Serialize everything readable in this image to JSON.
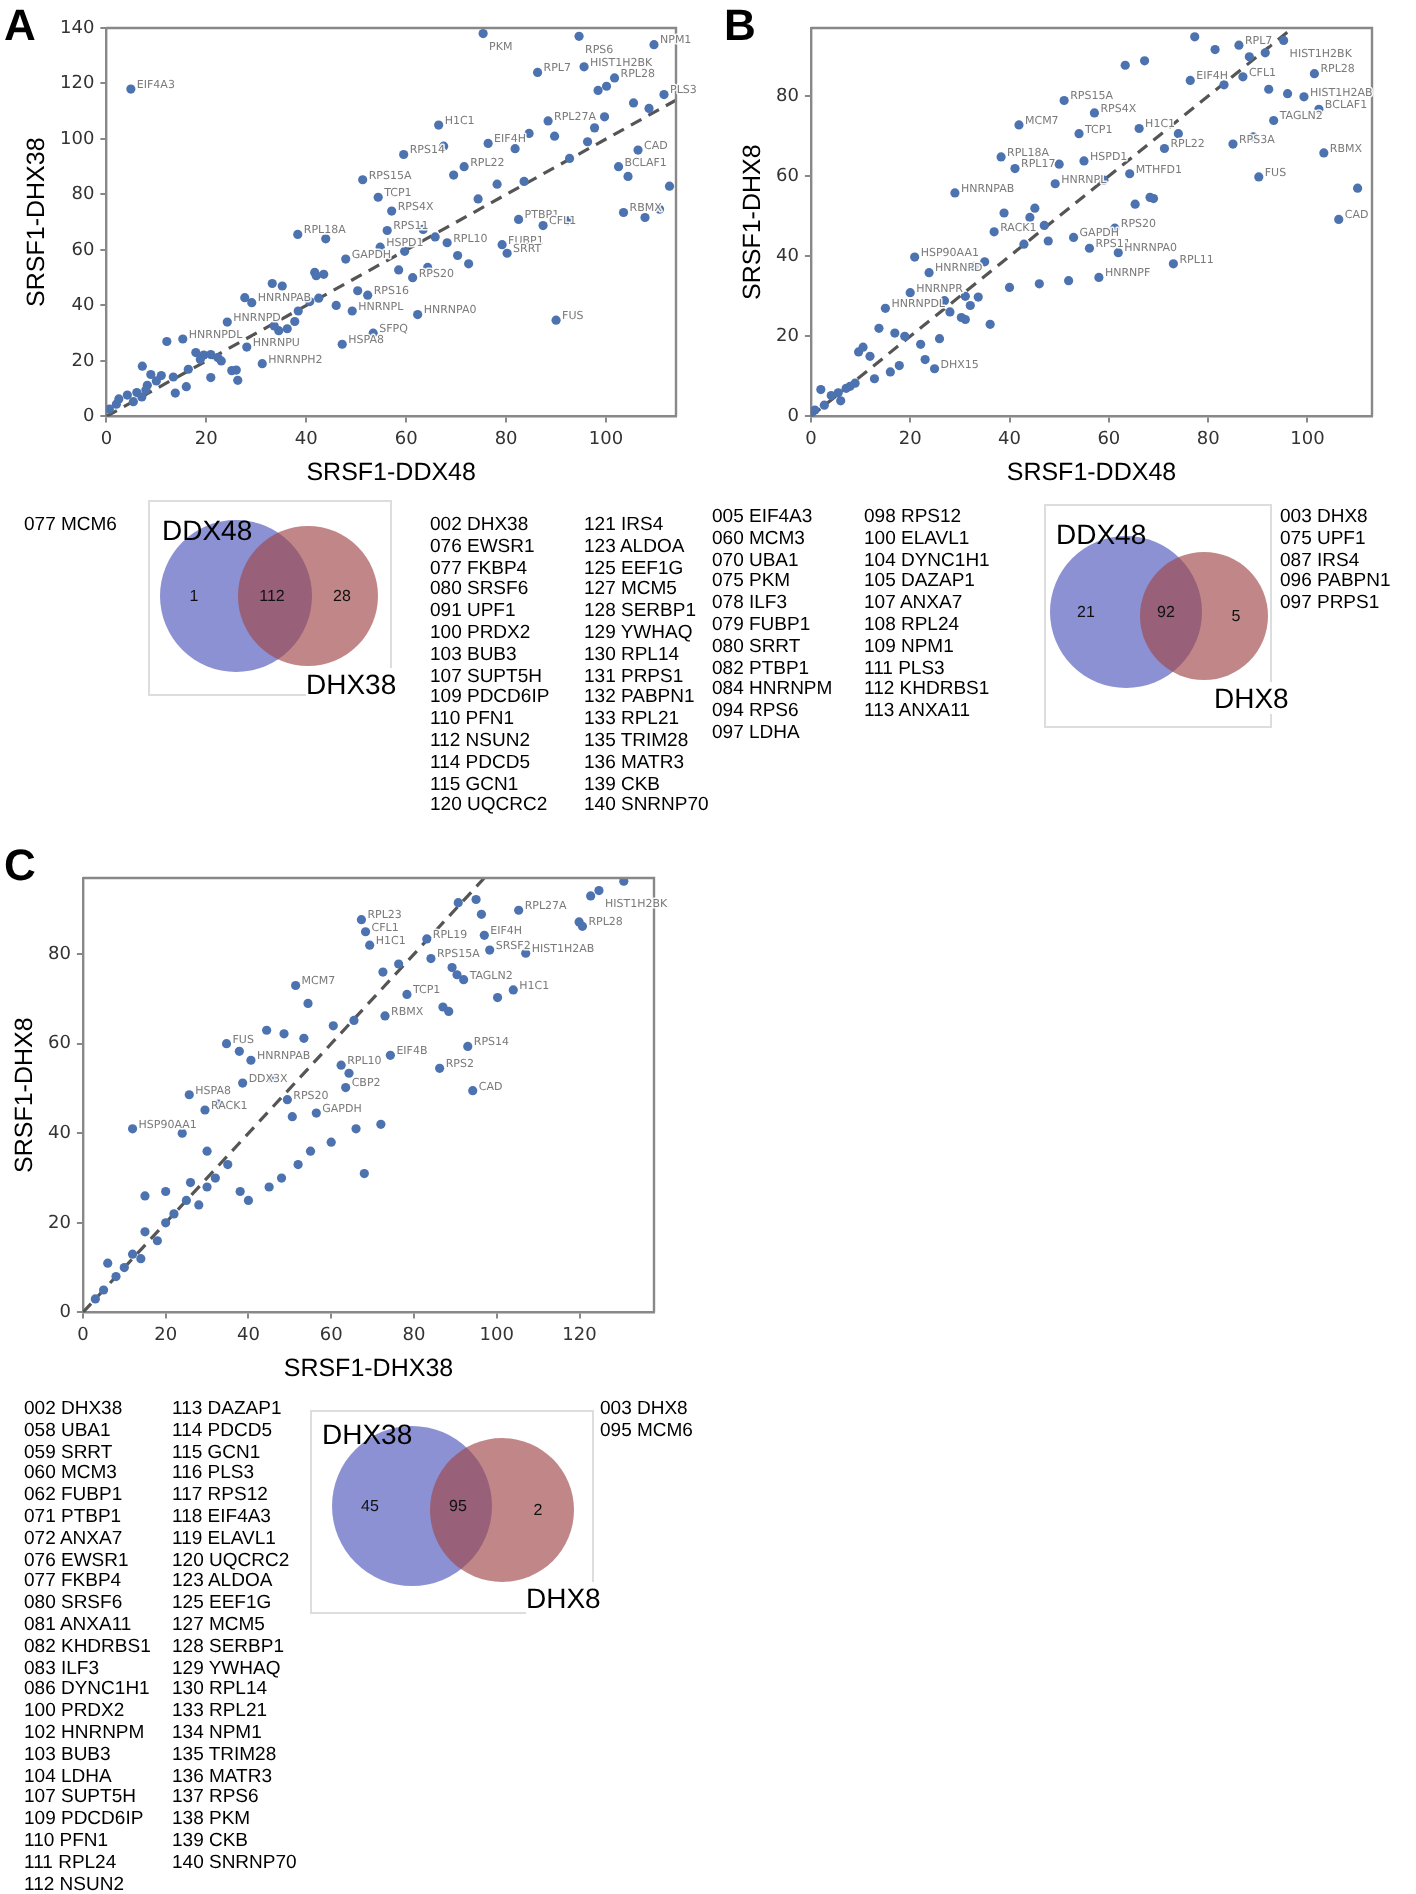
{
  "chart_data": [
    {
      "type": "scatter",
      "title": "A",
      "xlabel": "SRSF1-DDX48",
      "ylabel": "SRSF1-DHX38",
      "xlim": [
        0,
        114
      ],
      "ylim": [
        0,
        140
      ],
      "xticks": [
        0,
        20,
        40,
        60,
        80,
        100
      ],
      "yticks": [
        0,
        20,
        40,
        60,
        80,
        100,
        120,
        140
      ],
      "grid": false,
      "legend": false,
      "marker": "circle",
      "series": [
        {
          "color": "#4c72b0",
          "x": [
            4.9,
            75.4,
            94.6,
            109.6,
            86.3,
            95.6,
            101.7,
            100.1,
            98.4,
            111.6,
            105.5,
            108.6,
            99.7,
            97.7,
            88.4,
            84.6,
            89.7,
            66.5,
            59.5,
            67.5,
            76.4,
            81.8,
            96.3,
            106.4,
            102.5,
            104.4,
            112.7,
            92.7,
            71.6,
            69.5,
            51.3,
            54.4,
            57.1,
            103.5,
            107.8,
            110.7,
            78.2,
            83.6,
            74.4,
            56.2,
            63.4,
            65.8,
            68.2,
            82.5,
            87.4,
            92.4,
            38.3,
            43.9,
            47.9,
            54.8,
            59.7,
            79.2,
            80.2,
            70.3,
            72.5,
            61.3,
            58.5,
            64.3,
            90,
            62.3,
            53.4,
            47.2,
            49.2,
            46,
            52.3,
            50.3,
            41.7,
            43.5,
            42,
            33.2,
            35.2,
            27.7,
            29.1,
            38.4,
            40.7,
            42.5,
            24.2,
            37.7,
            36.2,
            34.5,
            33.6,
            12.1,
            15.3,
            28.1,
            7.2,
            31.2,
            17.9,
            19.5,
            20.9,
            22.3,
            18.8,
            23,
            26,
            25.1,
            20.9,
            26.3,
            16.4,
            13.4,
            8.9,
            11,
            10,
            8.2,
            7.9,
            6.1,
            4.2,
            2.5,
            2,
            0.6,
            5.4,
            7.1,
            13.8,
            16
          ],
          "values": [
            118,
            138,
            137,
            134,
            124,
            126,
            122,
            119,
            117.5,
            116,
            113,
            111,
            108,
            104,
            106.5,
            102,
            101,
            105,
            94.4,
            97.4,
            98.4,
            96.5,
            99,
            96,
            90,
            86.5,
            83,
            93,
            90,
            87,
            85.3,
            79,
            74,
            73.5,
            71.7,
            74.7,
            83.7,
            84.7,
            78.4,
            67,
            67.4,
            64.7,
            62.6,
            71,
            68.8,
            70.5,
            65.6,
            64,
            56.7,
            61,
            59.5,
            61.9,
            58.8,
            58,
            55,
            50,
            52.8,
            53.7,
            34.7,
            36.7,
            30,
            26,
            38,
            40,
            43.7,
            45.3,
            51.9,
            51.2,
            50.7,
            47.9,
            47,
            42.8,
            41,
            38,
            41.4,
            42.6,
            34,
            34.2,
            31.6,
            30.9,
            32.6,
            27,
            27.9,
            25,
            18.1,
            19,
            23,
            22.1,
            22.3,
            21.2,
            20.5,
            20,
            16.7,
            16.5,
            14,
            13,
            17,
            14.2,
            15.1,
            14.7,
            12.8,
            11.2,
            9.5,
            8.6,
            7.7,
            6.3,
            4.4,
            2.6,
            5.3,
            7,
            8.4,
            10.7
          ]
        },
        {
          "type": "line",
          "color": "#555555",
          "line_style": "dashed",
          "marker": "none",
          "x": [
            0,
            114
          ],
          "values": [
            0,
            114
          ]
        }
      ],
      "annotations": [
        "DDX48",
        "1",
        "112",
        "28",
        "DHX38",
        "077 MCM6",
        "002 DHX38\n076 EWSR1\n077 FKBP4\n080 SRSF6\n091 UPF1\n100 PRDX2\n103 BUB3\n107 SUPT5H\n109 PDCD6IP\n110 PFN1\n112 NSUN2\n114 PDCD5\n115 GCN1\n120 UQCRC2",
        "121 IRS4\n123 ALDOA\n125 EEF1G\n127 MCM5\n128 SERBP1\n129 YWHAQ\n130 RPL14\n131 PRPS1\n132 PABPN1\n133 RPL21\n135 TRIM28\n136 MATR3\n139 CKB\n140 SNRNP70",
        {
          "text": "EIF4A3",
          "x": 4.9,
          "y": 118
        },
        {
          "text": "PKM",
          "x": 75.4,
          "y": 138
        },
        {
          "text": "RPS6",
          "x": 94.6,
          "y": 137
        },
        {
          "text": "NPM1",
          "x": 109.6,
          "y": 134
        },
        {
          "text": "RPL7",
          "x": 86.3,
          "y": 124
        },
        {
          "text": "HIST1H2BK",
          "x": 95.6,
          "y": 126
        },
        {
          "text": "RPL28",
          "x": 101.7,
          "y": 122
        },
        {
          "text": "PLS3",
          "x": 111.6,
          "y": 116
        },
        {
          "text": "H1C1",
          "x": 66.5,
          "y": 105
        },
        {
          "text": "RPL27A",
          "x": 88.4,
          "y": 106.5
        },
        {
          "text": "RPS14",
          "x": 59.5,
          "y": 94.4
        },
        {
          "text": "EIF4H",
          "x": 76.4,
          "y": 98.4
        },
        {
          "text": "CAD",
          "x": 106.4,
          "y": 96
        },
        {
          "text": "BCLAF1",
          "x": 102.5,
          "y": 90
        },
        {
          "text": "RPL22",
          "x": 71.6,
          "y": 90
        },
        {
          "text": "RPS15A",
          "x": 51.3,
          "y": 85.3
        },
        {
          "text": "TCP1",
          "x": 54.4,
          "y": 79
        },
        {
          "text": "RPS4X",
          "x": 57.1,
          "y": 74
        },
        {
          "text": "RBMX",
          "x": 103.5,
          "y": 73.5
        },
        {
          "text": "RPS11",
          "x": 56.2,
          "y": 67
        },
        {
          "text": "RPL10",
          "x": 68.2,
          "y": 62.6
        },
        {
          "text": "PTBP1",
          "x": 82.5,
          "y": 71
        },
        {
          "text": "CFL1",
          "x": 87.4,
          "y": 68.8
        },
        {
          "text": "RPL18A",
          "x": 38.3,
          "y": 65.6
        },
        {
          "text": "GAPDH",
          "x": 47.9,
          "y": 56.7
        },
        {
          "text": "HSPD1",
          "x": 54.8,
          "y": 61
        },
        {
          "text": "FUBP1",
          "x": 79.2,
          "y": 61.9
        },
        {
          "text": "SRRT",
          "x": 80.2,
          "y": 58.8
        },
        {
          "text": "RPS20",
          "x": 61.3,
          "y": 50
        },
        {
          "text": "FUS",
          "x": 90,
          "y": 34.7
        },
        {
          "text": "HNRNPA0",
          "x": 62.3,
          "y": 36.7
        },
        {
          "text": "SFPQ",
          "x": 53.4,
          "y": 30
        },
        {
          "text": "HSPA8",
          "x": 47.2,
          "y": 26
        },
        {
          "text": "HNRNPL",
          "x": 49.2,
          "y": 38
        },
        {
          "text": "RPS16",
          "x": 52.3,
          "y": 43.7
        },
        {
          "text": "HNRNPAB",
          "x": 29.1,
          "y": 41
        },
        {
          "text": "HNRNPD",
          "x": 24.2,
          "y": 34
        },
        {
          "text": "HNRNPDL",
          "x": 15.3,
          "y": 27.9
        },
        {
          "text": "HNRNPU",
          "x": 28.1,
          "y": 25
        },
        {
          "text": "HNRNPH2",
          "x": 31.2,
          "y": 19
        }
      ]
    },
    {
      "type": "scatter",
      "title": "B",
      "xlabel": "SRSF1-DDX48",
      "ylabel": "SRSF1-DHX8",
      "xlim": [
        0,
        113
      ],
      "ylim": [
        0,
        97
      ],
      "xticks": [
        0,
        20,
        40,
        60,
        80,
        100
      ],
      "yticks": [
        0,
        20,
        40,
        60,
        80
      ],
      "grid": false,
      "legend": false,
      "marker": "circle",
      "series": [
        {
          "color": "#4c72b0",
          "x": [
            77.3,
            81.4,
            86.2,
            88.3,
            91.5,
            95.2,
            63.3,
            67.2,
            76.4,
            87,
            83.2,
            101.4,
            92.2,
            96,
            99.3,
            102.3,
            51,
            57.1,
            41.9,
            54,
            66.1,
            74,
            71.2,
            93.2,
            89.1,
            85,
            103.3,
            90.2,
            110.1,
            106.3,
            38.3,
            41.1,
            50,
            55,
            49.2,
            59,
            64.2,
            29,
            65.3,
            69,
            68.3,
            38.9,
            45.1,
            44.1,
            47,
            36.9,
            47.8,
            52.9,
            61.2,
            42.9,
            56.1,
            61.9,
            73,
            20.9,
            23.8,
            32.8,
            35,
            40,
            46,
            51.9,
            58,
            20,
            26.9,
            31.1,
            32.1,
            33.7,
            28,
            30.3,
            31.1,
            36.1,
            25.9,
            22.1,
            15,
            13.7,
            16.9,
            18.9,
            9.6,
            10.5,
            11.9,
            16,
            17.8,
            12.8,
            23,
            24.9,
            8.9,
            7.9,
            7.1,
            5.5,
            2,
            4.1,
            6,
            2.7,
            0.8,
            0.1
          ],
          "values": [
            94.8,
            91.6,
            92.7,
            89.8,
            90.8,
            93.9,
            87.7,
            88.8,
            83.9,
            84.8,
            82.8,
            85.6,
            81.7,
            80.6,
            79.8,
            76.7,
            78.9,
            75.8,
            72.8,
            70.6,
            71.9,
            70.6,
            66.9,
            73.9,
            69.8,
            68,
            65.8,
            59.8,
            57,
            49.2,
            64.8,
            61.9,
            63,
            63.8,
            58.1,
            59,
            60.6,
            55.8,
            53,
            54.4,
            54.7,
            50.8,
            52,
            49.7,
            47.7,
            46.1,
            43.8,
            44.7,
            47,
            43,
            42,
            40.9,
            38.1,
            39.8,
            35.9,
            37.5,
            38.6,
            32.2,
            33.1,
            33.9,
            34.7,
            30.9,
            28.9,
            30,
            27.7,
            29.8,
            26.1,
            24.7,
            24.2,
            23,
            19.4,
            18,
            27,
            22,
            20.8,
            20,
            16.1,
            17.3,
            15,
            11.1,
            12.7,
            9.4,
            14.2,
            11.9,
            8.3,
            7.5,
            7,
            5.9,
            6.7,
            5.2,
            3.9,
            2.8,
            1.6,
            0.8
          ]
        },
        {
          "type": "line",
          "color": "#555555",
          "line_style": "dashed",
          "marker": "none",
          "x": [
            0,
            97
          ],
          "values": [
            0,
            97
          ]
        }
      ],
      "annotations": [
        "DDX48",
        "21",
        "92",
        "5",
        "DHX8",
        "005 EIF4A3\n060 MCM3\n070 UBA1\n075 PKM\n078 ILF3\n079 FUBP1\n080 SRRT\n082 PTBP1\n084 HNRNPM\n094 RPS6\n097 LDHA",
        "098 RPS12\n100 ELAVL1\n104 DYNC1H1\n105 DAZAP1\n107 ANXA7\n108 RPL24\n109 NPM1\n111 PLS3\n112 KHDRBS1\n113 ANXA11",
        "003 DHX8\n075 UPF1\n087 IRS4\n096 PABPN1\n097 PRPS1",
        {
          "text": "HIST1H2BK",
          "x": 95.2,
          "y": 93.9
        },
        {
          "text": "RPL7",
          "x": 86.2,
          "y": 92.7
        },
        {
          "text": "EIF4H",
          "x": 76.4,
          "y": 83.9
        },
        {
          "text": "CFL1",
          "x": 87,
          "y": 84.8
        },
        {
          "text": "RPL28",
          "x": 101.4,
          "y": 85.6
        },
        {
          "text": "HIST1H2AB",
          "x": 99.3,
          "y": 79.8
        },
        {
          "text": "BCLAF1",
          "x": 102.3,
          "y": 76.7
        },
        {
          "text": "RPS15A",
          "x": 51,
          "y": 78.9
        },
        {
          "text": "RPS4X",
          "x": 57.1,
          "y": 75.8
        },
        {
          "text": "MCM7",
          "x": 41.9,
          "y": 72.8
        },
        {
          "text": "TCP1",
          "x": 54,
          "y": 70.6
        },
        {
          "text": "H1C1",
          "x": 66.1,
          "y": 71.9
        },
        {
          "text": "RPL22",
          "x": 71.2,
          "y": 66.9
        },
        {
          "text": "TAGLN2",
          "x": 93.2,
          "y": 73.9
        },
        {
          "text": "RPS3A",
          "x": 85,
          "y": 68
        },
        {
          "text": "RBMX",
          "x": 103.3,
          "y": 65.8
        },
        {
          "text": "FUS",
          "x": 90.2,
          "y": 59.8
        },
        {
          "text": "CAD",
          "x": 106.3,
          "y": 49.2
        },
        {
          "text": "RPL18A",
          "x": 38.3,
          "y": 64.8
        },
        {
          "text": "RPL17",
          "x": 41.1,
          "y": 61.9
        },
        {
          "text": "HSPD1",
          "x": 55,
          "y": 63.8
        },
        {
          "text": "HNRNPL",
          "x": 49.2,
          "y": 58.1
        },
        {
          "text": "MTHFD1",
          "x": 64.2,
          "y": 60.6
        },
        {
          "text": "HNRNPAB",
          "x": 29,
          "y": 55.8
        },
        {
          "text": "RACK1",
          "x": 36.9,
          "y": 46.1
        },
        {
          "text": "GAPDH",
          "x": 52.9,
          "y": 44.7
        },
        {
          "text": "RPS20",
          "x": 61.2,
          "y": 47
        },
        {
          "text": "RPS11",
          "x": 56.1,
          "y": 42
        },
        {
          "text": "HNRNPA0",
          "x": 61.9,
          "y": 40.9
        },
        {
          "text": "RPL11",
          "x": 73,
          "y": 38.1
        },
        {
          "text": "HSP90AA1",
          "x": 20.9,
          "y": 39.8
        },
        {
          "text": "HNRNPD",
          "x": 23.8,
          "y": 35.9
        },
        {
          "text": "HNRNPF",
          "x": 58,
          "y": 34.7
        },
        {
          "text": "HNRNPR",
          "x": 20,
          "y": 30.9
        },
        {
          "text": "HNRNPDL",
          "x": 15,
          "y": 27
        },
        {
          "text": "DHX15",
          "x": 24.9,
          "y": 11.9
        }
      ]
    },
    {
      "type": "scatter",
      "title": "C",
      "xlabel": "SRSF1-DHX38",
      "ylabel": "SRSF1-DHX8",
      "xlim": [
        0,
        138
      ],
      "ylim": [
        0,
        97
      ],
      "xticks": [
        0,
        20,
        40,
        60,
        80,
        100,
        120
      ],
      "yticks": [
        0,
        20,
        40,
        60,
        80
      ],
      "grid": false,
      "legend": false,
      "marker": "circle",
      "series": [
        {
          "color": "#4c72b0",
          "x": [
            67.3,
            68.3,
            69.3,
            83.1,
            97,
            98.3,
            107,
            90.7,
            95,
            96.3,
            105.3,
            122.7,
            124.7,
            119.9,
            120.7,
            130.7,
            72.5,
            76.3,
            84.1,
            89.2,
            90.4,
            92,
            104,
            100.2,
            51.4,
            54.4,
            78.3,
            73,
            60.5,
            65.5,
            87,
            88.4,
            44.4,
            48.6,
            53.4,
            34.7,
            37.8,
            40.6,
            62.4,
            64.3,
            63.5,
            74.3,
            93,
            86.2,
            94.2,
            38.6,
            45.6,
            25.7,
            29.5,
            32.8,
            49.4,
            50.6,
            56.4,
            5,
            3,
            8,
            10,
            12,
            14,
            6,
            15,
            18,
            20,
            22,
            25,
            28,
            30,
            26,
            20,
            15,
            32,
            35,
            38,
            40,
            45,
            48,
            52,
            55,
            60,
            66,
            68,
            72,
            12,
            24,
            30
          ],
          "values": [
            87.7,
            85,
            82,
            83.4,
            84.2,
            80.9,
            80.2,
            91.5,
            92.2,
            88.9,
            89.8,
            93,
            94.2,
            87.2,
            86.2,
            96.3,
            76,
            77.8,
            79,
            77,
            75.4,
            74.3,
            72,
            70.3,
            73,
            69,
            71,
            66.2,
            64,
            65.2,
            68.2,
            67.2,
            63,
            62.2,
            61.2,
            60,
            58.3,
            56.3,
            55.2,
            53.4,
            50.2,
            57.4,
            59.4,
            54.5,
            49.5,
            51.2,
            52.3,
            48.6,
            45.2,
            46.5,
            47.5,
            43.7,
            44.5,
            5,
            3,
            8,
            10,
            13,
            12,
            11,
            18,
            16,
            20,
            22,
            25,
            24,
            28,
            29,
            27,
            26,
            30,
            33,
            27,
            25,
            28,
            30,
            33,
            36,
            38,
            41,
            31,
            42,
            41,
            40,
            36
          ]
        },
        {
          "type": "line",
          "color": "#555555",
          "line_style": "dashed",
          "marker": "none",
          "x": [
            0,
            97
          ],
          "values": [
            0,
            97
          ]
        }
      ],
      "annotations": [
        "DHX38",
        "45",
        "95",
        "2",
        "DHX8",
        "002 DHX38\n058 UBA1\n059 SRRT\n060 MCM3\n062 FUBP1\n071 PTBP1\n072 ANXA7\n076 EWSR1\n077 FKBP4\n080 SRSF6\n081 ANXA11\n082 KHDRBS1\n083 ILF3\n086 DYNC1H1\n100 PRDX2\n102 HNRNPM\n103 BUB3\n104 LDHA\n107 SUPT5H\n109 PDCD6IP\n110 PFN1\n111 RPL24\n112 NSUN2",
        "113 DAZAP1\n114 PDCD5\n115 GCN1\n116 PLS3\n117 RPS12\n118 EIF4A3\n119 ELAVL1\n120 UQCRC2\n123 ALDOA\n125 EEF1G\n127 MCM5\n128 SERBP1\n129 YWHAQ\n130 RPL14\n133 RPL21\n134 NPM1\n135 TRIM28\n136 MATR3\n137 RPS6\n138 PKM\n139 CKB\n140 SNRNP70",
        "003 DHX8\n095 MCM6",
        {
          "text": "RPL23",
          "x": 67.3,
          "y": 87.7
        },
        {
          "text": "CFL1",
          "x": 68.3,
          "y": 85
        },
        {
          "text": "H1C1",
          "x": 69.3,
          "y": 82
        },
        {
          "text": "RPL19",
          "x": 83.1,
          "y": 83.4
        },
        {
          "text": "EIF4H",
          "x": 97,
          "y": 84.2
        },
        {
          "text": "SRSF2",
          "x": 98.3,
          "y": 80.9
        },
        {
          "text": "HIST1H2AB",
          "x": 107,
          "y": 80.2
        },
        {
          "text": "RPL27A",
          "x": 105.3,
          "y": 89.8
        },
        {
          "text": "HIST1H2BK",
          "x": 124.7,
          "y": 94.2
        },
        {
          "text": "RPL28",
          "x": 120.7,
          "y": 86.2
        },
        {
          "text": "RPS15A",
          "x": 84.1,
          "y": 79
        },
        {
          "text": "TAGLN2",
          "x": 92,
          "y": 74.3
        },
        {
          "text": "H1C1",
          "x": 104,
          "y": 72
        },
        {
          "text": "MCM7",
          "x": 51.4,
          "y": 73
        },
        {
          "text": "TCP1",
          "x": 78.3,
          "y": 71
        },
        {
          "text": "RBMX",
          "x": 73,
          "y": 66.2
        },
        {
          "text": "FUS",
          "x": 34.7,
          "y": 60
        },
        {
          "text": "HNRNPAB",
          "x": 40.6,
          "y": 56.3
        },
        {
          "text": "RPL10",
          "x": 62.4,
          "y": 55.2
        },
        {
          "text": "CBP2",
          "x": 63.5,
          "y": 50.2
        },
        {
          "text": "EIF4B",
          "x": 74.3,
          "y": 57.4
        },
        {
          "text": "RPS14",
          "x": 93,
          "y": 59.4
        },
        {
          "text": "RPS2",
          "x": 86.2,
          "y": 54.5
        },
        {
          "text": "CAD",
          "x": 94.2,
          "y": 49.5
        },
        {
          "text": "DDX3X",
          "x": 38.6,
          "y": 51.2
        },
        {
          "text": "HSPA8",
          "x": 25.7,
          "y": 48.6
        },
        {
          "text": "RACK1",
          "x": 29.5,
          "y": 45.2
        },
        {
          "text": "RPS20",
          "x": 49.4,
          "y": 47.5
        },
        {
          "text": "GAPDH",
          "x": 56.4,
          "y": 44.5
        },
        {
          "text": "HSP90AA1",
          "x": 12,
          "y": 41
        }
      ]
    }
  ]
}
